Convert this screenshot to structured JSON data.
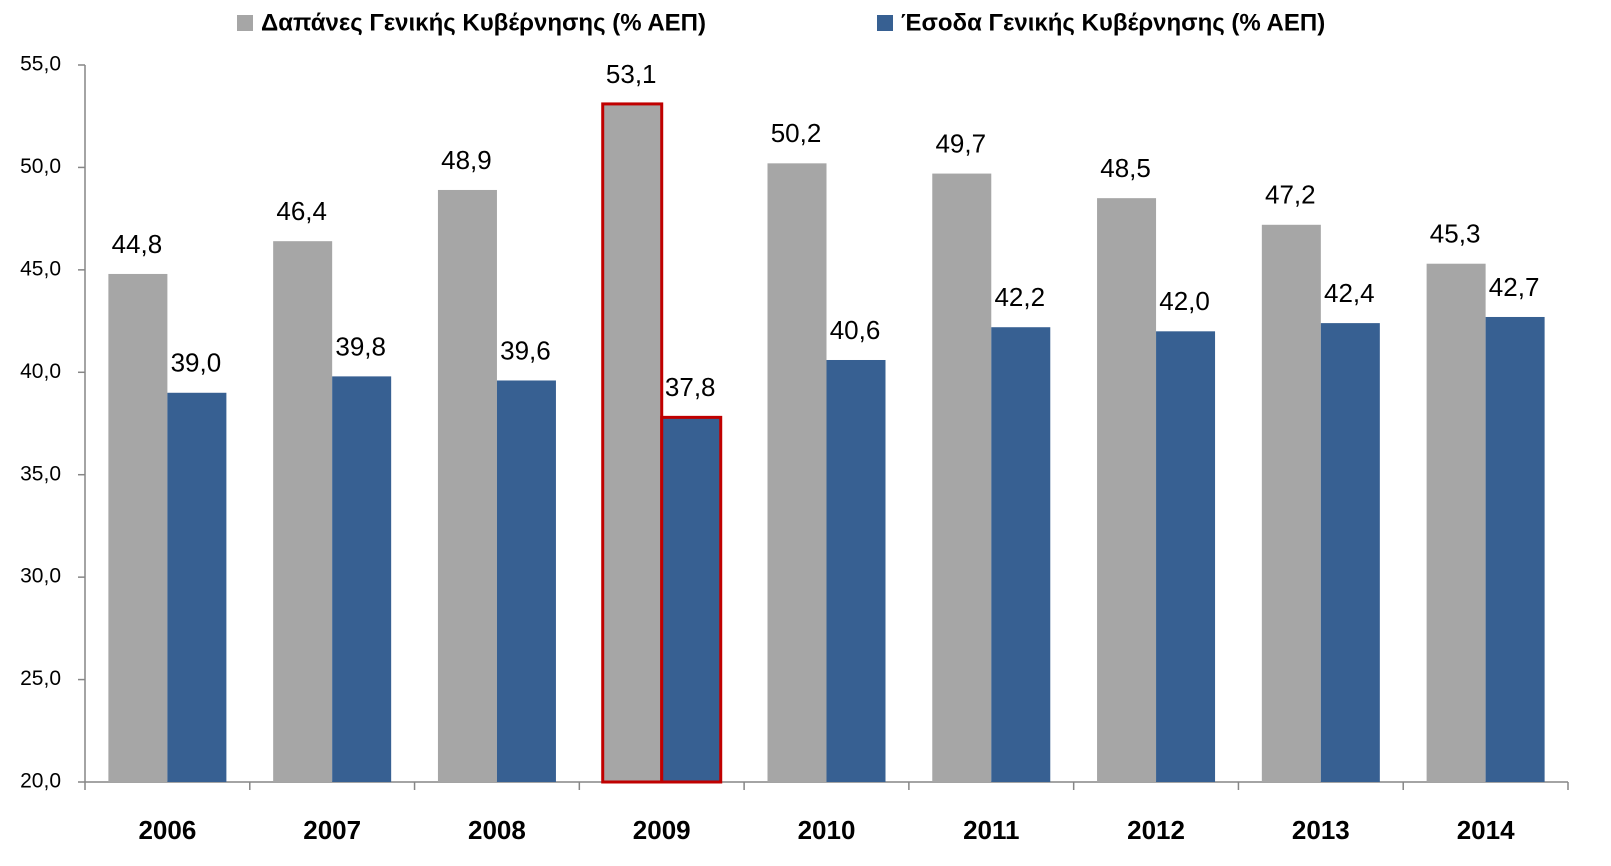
{
  "chart_data": {
    "type": "bar",
    "categories": [
      "2006",
      "2007",
      "2008",
      "2009",
      "2010",
      "2011",
      "2012",
      "2013",
      "2014"
    ],
    "series": [
      {
        "name": "Δαπάνες Γενικής Κυβέρνησης (% ΑΕΠ)",
        "color": "#a6a6a6",
        "values": [
          44.8,
          46.4,
          48.9,
          53.1,
          50.2,
          49.7,
          48.5,
          47.2,
          45.3
        ],
        "value_labels": [
          "44,8",
          "46,4",
          "48,9",
          "53,1",
          "50,2",
          "49,7",
          "48,5",
          "47,2",
          "45,3"
        ]
      },
      {
        "name": "Έσοδα Γενικής Κυβέρνησης (% ΑΕΠ)",
        "color": "#376092",
        "values": [
          39.0,
          39.8,
          39.6,
          37.8,
          40.6,
          42.2,
          42.0,
          42.4,
          42.7
        ],
        "value_labels": [
          "39,0",
          "39,8",
          "39,6",
          "37,8",
          "40,6",
          "42,2",
          "42,0",
          "42,4",
          "42,7"
        ]
      }
    ],
    "ylim": [
      20,
      55
    ],
    "yticks": [
      {
        "value": 20,
        "label": "20,0"
      },
      {
        "value": 25,
        "label": "25,0"
      },
      {
        "value": 30,
        "label": "30,0"
      },
      {
        "value": 35,
        "label": "35,0"
      },
      {
        "value": 40,
        "label": "40,0"
      },
      {
        "value": 45,
        "label": "45,0"
      },
      {
        "value": 50,
        "label": "50,0"
      },
      {
        "value": 55,
        "label": "55,0"
      }
    ],
    "grid": false,
    "legend": "top",
    "highlight": 3,
    "highlight_color": "#c00000"
  }
}
